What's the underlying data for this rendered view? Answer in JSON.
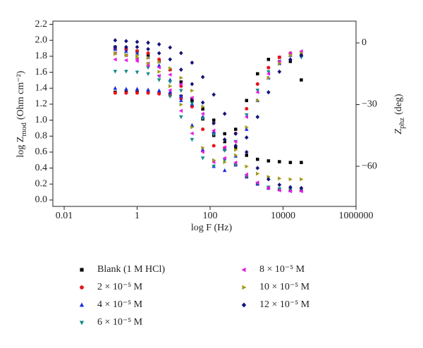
{
  "chart_data": {
    "type": "scatter",
    "xscale": "log",
    "x_label": "log F (Hz)",
    "y_label": "log Z",
    "y_label_sub": "mod",
    "y_label_unit": "(Ohm cm⁻²)",
    "y2_label": "Z",
    "y2_label_sub": "phz",
    "y2_label_unit": "(deg)",
    "x": [
      0.25,
      0.5,
      1,
      2,
      4,
      8,
      16,
      32,
      63,
      126,
      251,
      501,
      1000,
      1995,
      3981,
      7943,
      15849,
      31623
    ],
    "xlim": [
      0.0049,
      1000000
    ],
    "xticks": [
      0.01,
      1,
      100,
      10000,
      1000000
    ],
    "ylim": [
      -0.08,
      2.24
    ],
    "yticks": [
      {
        "value": 0,
        "label": "0.0"
      },
      0.2,
      0.4,
      0.6,
      0.8,
      {
        "value": 1,
        "label": "1.0"
      },
      1.2,
      1.4,
      1.6,
      1.8,
      {
        "value": 2,
        "label": "2.0"
      },
      2.2
    ],
    "y2lim": [
      -79.5,
      10.6
    ],
    "y2ticks": [
      0,
      {
        "value": -30,
        "label": "−30"
      },
      {
        "value": -60,
        "label": "−60"
      }
    ],
    "series": [
      {
        "name": "Blank (1 M HCl)",
        "color": "#000000",
        "marker": "square",
        "values": [
          1.35,
          1.35,
          1.35,
          1.35,
          1.34,
          1.33,
          1.3,
          1.24,
          1.14,
          1.0,
          0.83,
          0.66,
          0.56,
          0.51,
          0.49,
          0.48,
          0.47,
          0.47
        ],
        "y2_values": [
          -2,
          -3,
          -4,
          -6,
          -9,
          -13,
          -19,
          -27,
          -37,
          -45,
          -48,
          -42,
          -28,
          -15,
          -8,
          -7,
          -9,
          -18
        ]
      },
      {
        "name": "2 × 10⁻⁵ M",
        "color": "#e8141c",
        "marker": "circle",
        "values": [
          1.34,
          1.34,
          1.34,
          1.34,
          1.33,
          1.31,
          1.27,
          1.18,
          1.03,
          0.84,
          0.63,
          0.44,
          0.29,
          0.2,
          0.15,
          0.13,
          0.12,
          0.12
        ],
        "y2_values": [
          -3,
          -3,
          -4,
          -5,
          -8,
          -13,
          -21,
          -31,
          -42,
          -50,
          -51,
          -44,
          -32,
          -20,
          -12,
          -7,
          -5,
          -6
        ]
      },
      {
        "name": "4 × 10⁻⁵ M",
        "color": "#1c2ee0",
        "marker": "triangle-up",
        "values": [
          1.4,
          1.39,
          1.39,
          1.38,
          1.37,
          1.35,
          1.3,
          1.2,
          1.04,
          0.85,
          0.64,
          0.44,
          0.29,
          0.2,
          0.15,
          0.13,
          0.12,
          0.12
        ],
        "y2_values": [
          -3,
          -4,
          -5,
          -7,
          -11,
          -18,
          -28,
          -40,
          -52,
          -60,
          -62,
          -55,
          -42,
          -28,
          -17,
          -10,
          -6,
          -6
        ]
      },
      {
        "name": "6 × 10⁻⁵ M",
        "color": "#178a8a",
        "marker": "triangle-down",
        "values": [
          1.61,
          1.61,
          1.6,
          1.58,
          1.55,
          1.48,
          1.37,
          1.21,
          1.02,
          0.82,
          0.62,
          0.44,
          0.3,
          0.21,
          0.16,
          0.14,
          0.13,
          0.13
        ],
        "y2_values": [
          -5,
          -6,
          -8,
          -12,
          -18,
          -26,
          -36,
          -47,
          -56,
          -60,
          -57,
          -48,
          -35,
          -23,
          -14,
          -9,
          -6,
          -7
        ]
      },
      {
        "name": "8 × 10⁻⁵ M",
        "color": "#e41ce4",
        "marker": "triangle-left",
        "values": [
          1.76,
          1.75,
          1.74,
          1.71,
          1.66,
          1.57,
          1.45,
          1.28,
          1.08,
          0.87,
          0.66,
          0.47,
          0.32,
          0.22,
          0.15,
          0.12,
          0.11,
          0.11
        ],
        "y2_values": [
          -5,
          -6,
          -8,
          -11,
          -16,
          -23,
          -33,
          -44,
          -53,
          -58,
          -56,
          -48,
          -36,
          -24,
          -15,
          -9,
          -5,
          -4
        ]
      },
      {
        "name": "10 × 10⁻⁵ M",
        "color": "#a09a1c",
        "marker": "triangle-right",
        "values": [
          1.83,
          1.82,
          1.81,
          1.78,
          1.73,
          1.65,
          1.53,
          1.37,
          1.17,
          0.96,
          0.75,
          0.56,
          0.42,
          0.33,
          0.29,
          0.27,
          0.26,
          0.26
        ],
        "y2_values": [
          -5,
          -6,
          -7,
          -10,
          -14,
          -21,
          -30,
          -41,
          -51,
          -57,
          -58,
          -52,
          -41,
          -28,
          -17,
          -10,
          -6,
          -5
        ]
      },
      {
        "name": "12 × 10⁻⁵ M",
        "color": "#14147a",
        "marker": "diamond",
        "values": [
          2.0,
          1.99,
          1.98,
          1.97,
          1.95,
          1.91,
          1.84,
          1.72,
          1.54,
          1.32,
          1.08,
          0.83,
          0.6,
          0.4,
          0.26,
          0.19,
          0.16,
          0.15
        ],
        "y2_values": [
          -2,
          -2,
          -2,
          -3,
          -5,
          -8,
          -13,
          -20,
          -29,
          -39,
          -47,
          -50,
          -46,
          -36,
          -24,
          -14,
          -8,
          -6
        ]
      }
    ]
  }
}
